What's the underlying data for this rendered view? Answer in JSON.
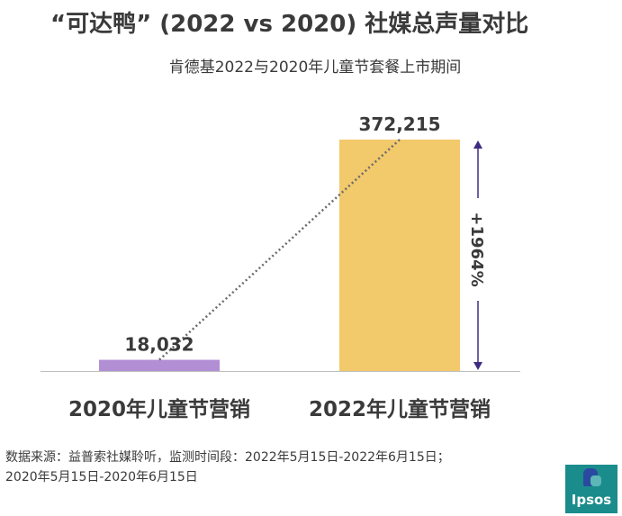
{
  "title": "“可达鸭” (2022 vs 2020) 社媒总声量对比",
  "subtitle": "肯德基2022与2020年儿童节套餐上市期间",
  "chart_data": {
    "type": "bar",
    "categories": [
      "2020年儿童节营销",
      "2022年儿童节营销"
    ],
    "values": [
      18032,
      372215
    ],
    "value_labels": [
      "18,032",
      "372,215"
    ],
    "ylim": [
      0,
      372215
    ],
    "colors": [
      "#b28fd4",
      "#f2c96b"
    ],
    "annotation": "+1964%",
    "annotation_color": "#3d2c82",
    "trend_line_color": "#6a6a6a",
    "grid": false
  },
  "footnote": {
    "line1": "数据来源：益普索社媒聆听，监测时间段：2022年5月15日-2022年6月15日；",
    "line2": "2020年5月15日-2020年6月15日"
  },
  "logo": {
    "text": "Ipsos",
    "icon": "speech-bubble-icon"
  }
}
